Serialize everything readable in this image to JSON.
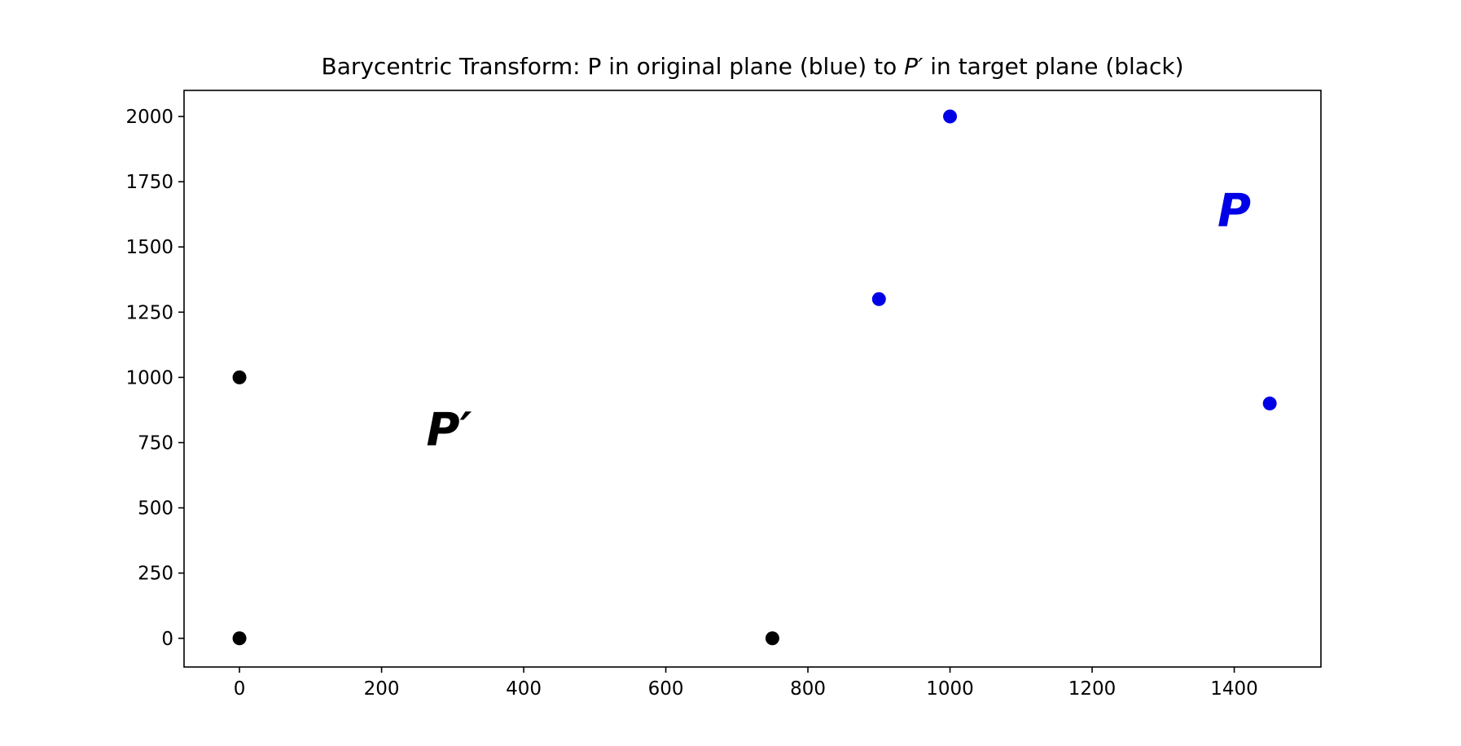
{
  "chart_data": {
    "type": "scatter",
    "title": "Barycentric Transform: P in original plane (blue) to P′ in target plane (black)",
    "title_parts": {
      "before": "Barycentric Transform: P in original plane (blue) to ",
      "symbol": "P′",
      "after": " in target plane (black)"
    },
    "xlabel": "",
    "ylabel": "",
    "xlim": [
      -78,
      1522
    ],
    "ylim": [
      -110,
      2100
    ],
    "x_ticks": [
      0,
      200,
      400,
      600,
      800,
      1000,
      1200,
      1400
    ],
    "y_ticks": [
      0,
      250,
      500,
      750,
      1000,
      1250,
      1500,
      1750,
      2000
    ],
    "grid": false,
    "series": [
      {
        "color": "#0000e6",
        "points": [
          {
            "x": 1000,
            "y": 2000
          },
          {
            "x": 900,
            "y": 1300
          },
          {
            "x": 1450,
            "y": 900
          }
        ]
      },
      {
        "color": "#000000",
        "points": [
          {
            "x": 0,
            "y": 1000
          },
          {
            "x": 0,
            "y": 0
          },
          {
            "x": 750,
            "y": 0
          }
        ]
      }
    ],
    "annotations": [
      {
        "text": "P",
        "x": 1400,
        "y": 1580,
        "color": "#0000e6"
      },
      {
        "text": "P′",
        "x": 295,
        "y": 740,
        "color": "#000000"
      }
    ]
  }
}
